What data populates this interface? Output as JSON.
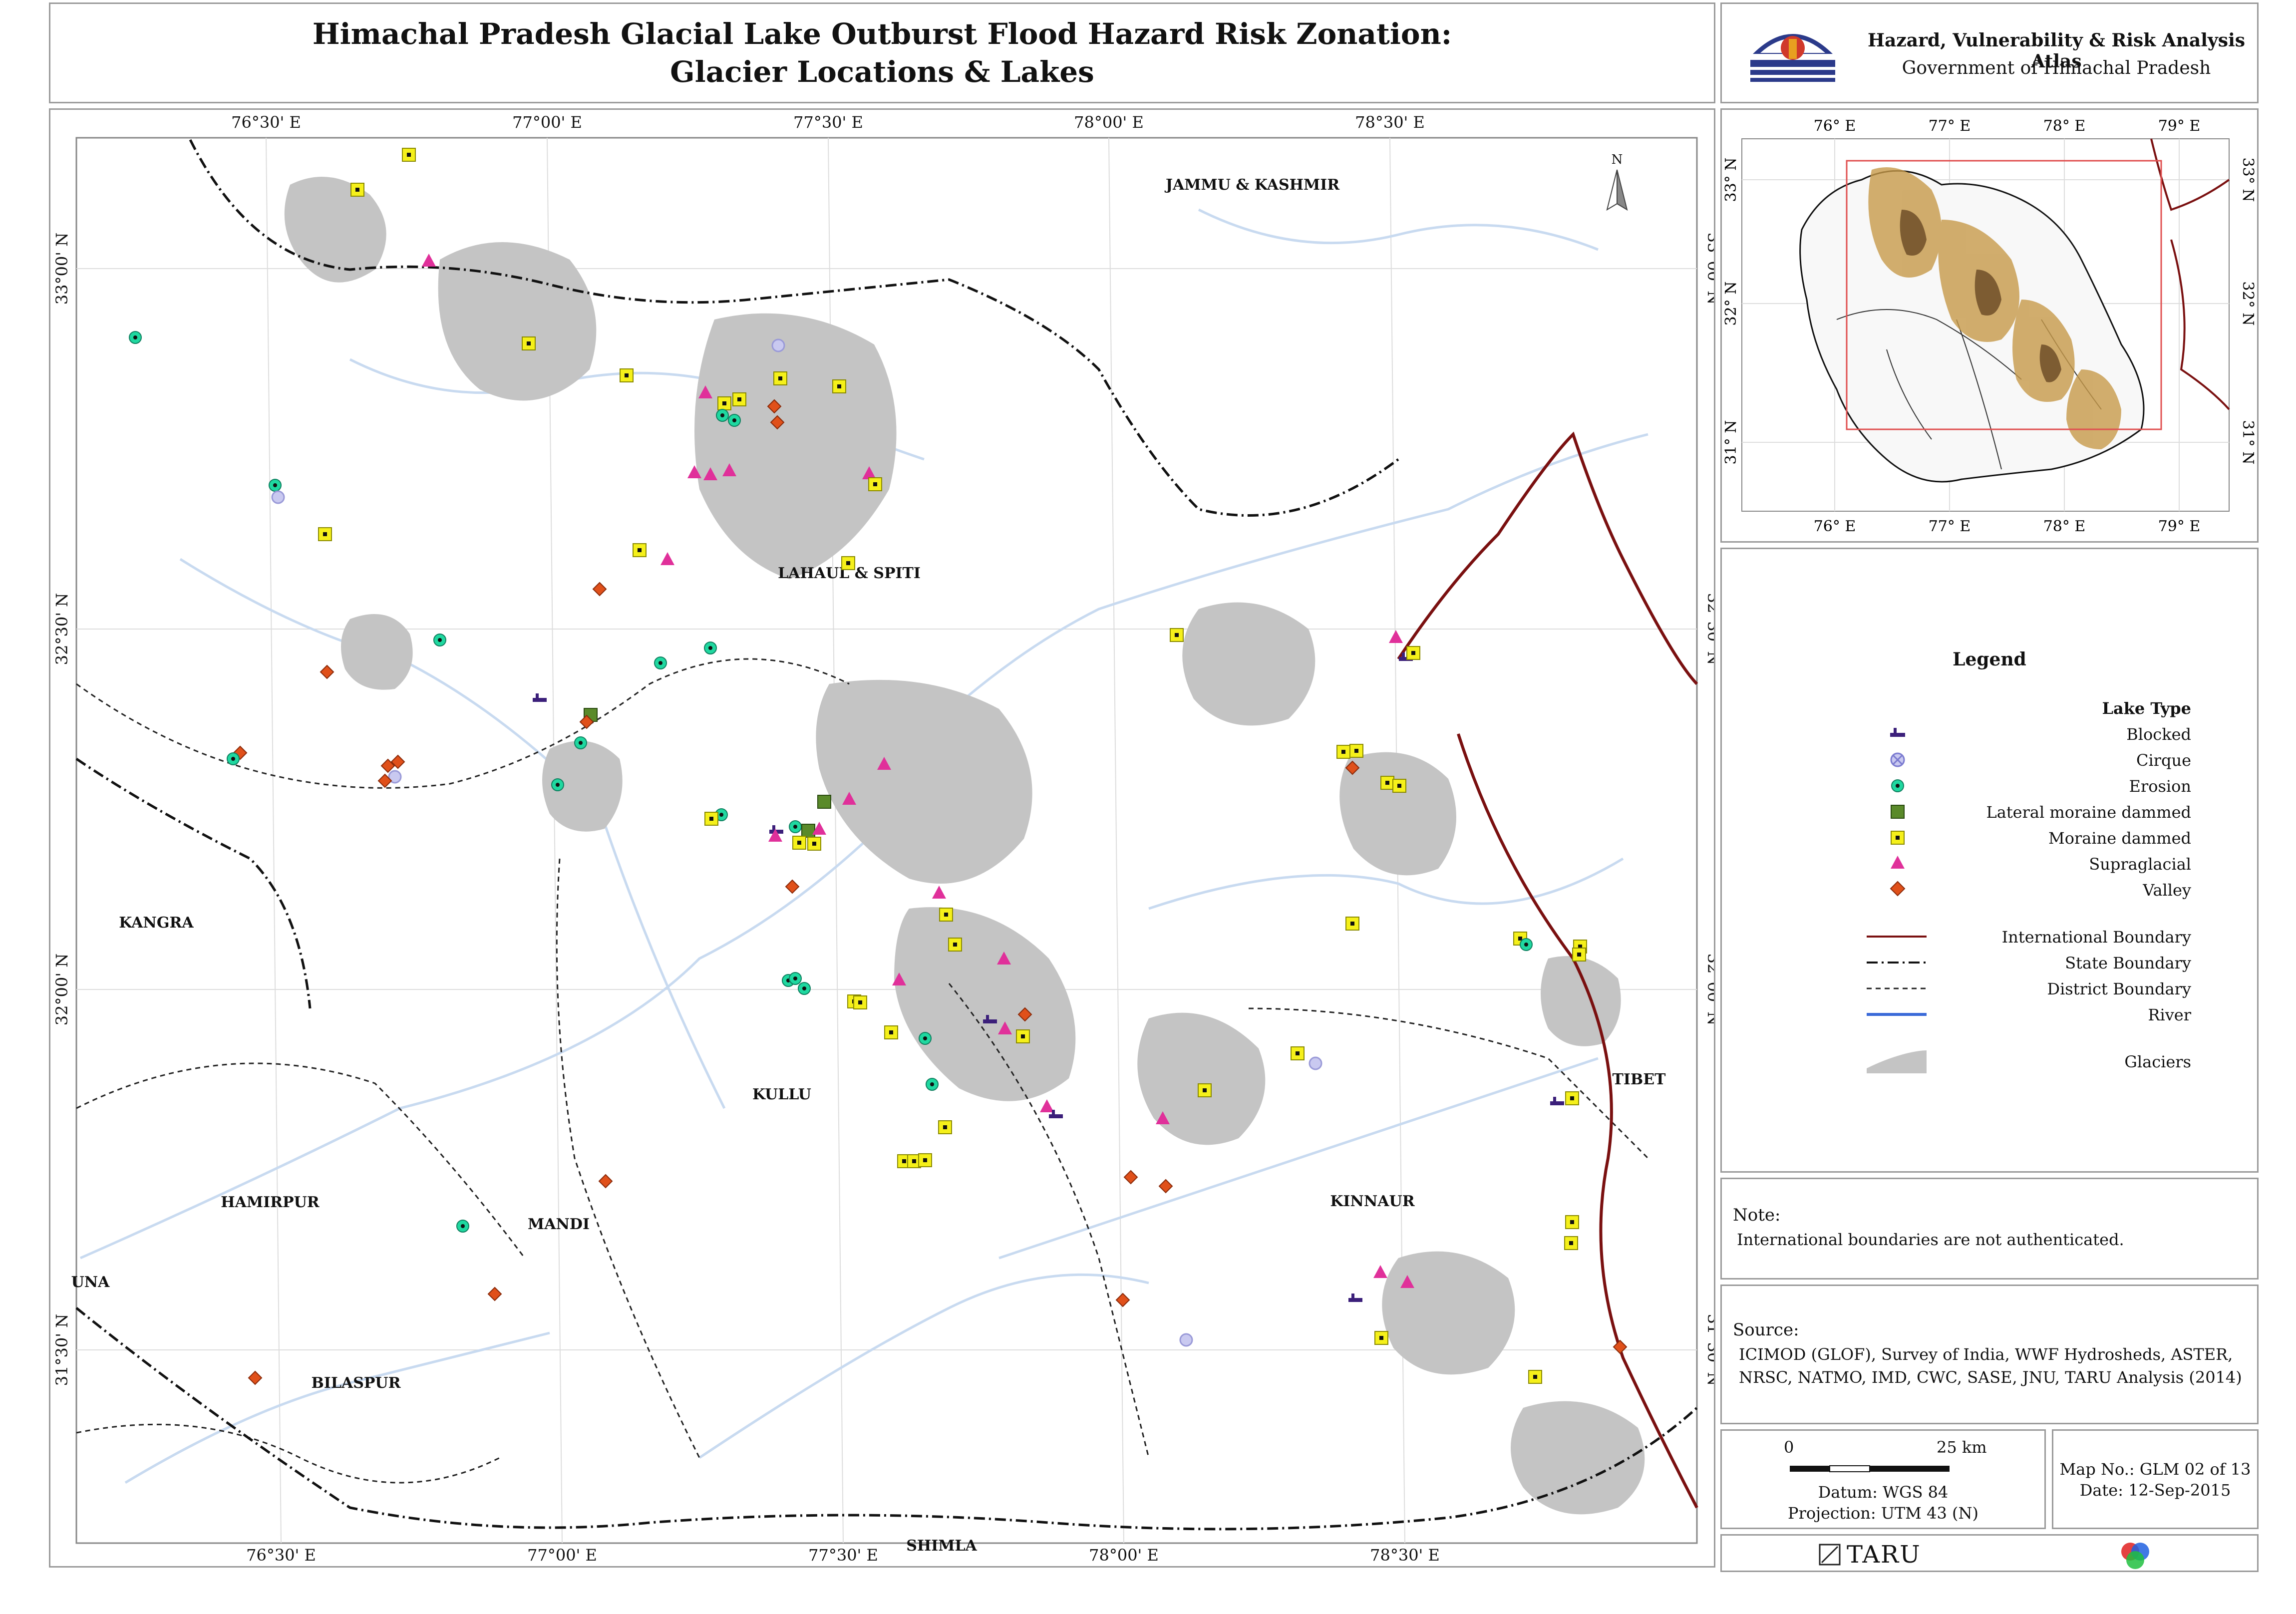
{
  "title": {
    "line1": "Himachal Pradesh Glacial Lake Outburst Flood Hazard Risk Zonation:",
    "line2": "Glacier Locations & Lakes"
  },
  "agency": {
    "name": "Hazard, Vulnerability & Risk Analysis Atlas",
    "government": "Government of Himachal Pradesh"
  },
  "map": {
    "top_ticks": [
      "76°30' E",
      "77°00' E",
      "77°30' E",
      "78°00' E",
      "78°30' E"
    ],
    "bottom_ticks": [
      "76°30' E",
      "77°00' E",
      "77°30' E",
      "78°00' E",
      "78°30' E"
    ],
    "left_ticks": [
      "33°00' N",
      "32°30' N",
      "32°00' N",
      "31°30' N"
    ],
    "right_ticks": [
      "33°00' N",
      "32°30' N",
      "32°00' N",
      "31°30' N"
    ],
    "north_label": "N",
    "districts": [
      "JAMMU & KASHMIR",
      "LAHAUL & SPITI",
      "KANGRA",
      "KULLU",
      "HAMIRPUR",
      "MANDI",
      "KINNAUR",
      "TIBET",
      "BILASPUR",
      "UNA",
      "SHIMLA"
    ],
    "colors": {
      "blocked": "#3b1f7a",
      "cirque": "#9a9ad8",
      "erosion": "#1fd8a0",
      "lateral": "#5a8a2a",
      "moraine": "#f5f01a",
      "supraglacial": "#e0309a",
      "valley": "#e0501a",
      "international": "#7a1010",
      "river": "#c8daf0",
      "glacier": "#c4c4c4"
    }
  },
  "inset": {
    "top_ticks": [
      "76° E",
      "77° E",
      "78° E",
      "79° E"
    ],
    "bottom_ticks": [
      "76° E",
      "77° E",
      "78° E",
      "79° E"
    ],
    "left_ticks": [
      "33° N",
      "32° N",
      "31° N"
    ],
    "right_ticks": [
      "33° N",
      "32° N",
      "31° N"
    ]
  },
  "legend": {
    "title": "Legend",
    "lake_type_heading": "Lake Type",
    "lake_types": [
      "Blocked",
      "Cirque",
      "Erosion",
      "Lateral moraine dammed",
      "Moraine dammed",
      "Supraglacial",
      "Valley"
    ],
    "lines": [
      "International Boundary",
      "State Boundary",
      "District Boundary",
      "River"
    ],
    "glaciers": "Glaciers"
  },
  "note": {
    "heading": "Note:",
    "text": "International boundaries are not authenticated."
  },
  "source": {
    "heading": "Source:",
    "line1": "ICIMOD (GLOF), Survey of India, WWF Hydrosheds, ASTER,",
    "line2": "NRSC, NATMO, IMD, CWC, SASE, JNU, TARU Analysis (2014)"
  },
  "scale": {
    "zero": "0",
    "distance": "25 km",
    "datum": "Datum: WGS 84",
    "projection": "Projection: UTM 43 (N)"
  },
  "map_info": {
    "number": "Map No.: GLM 02 of 13",
    "date": "Date: 12-Sep-2015"
  },
  "logo": {
    "text": "TARU"
  }
}
